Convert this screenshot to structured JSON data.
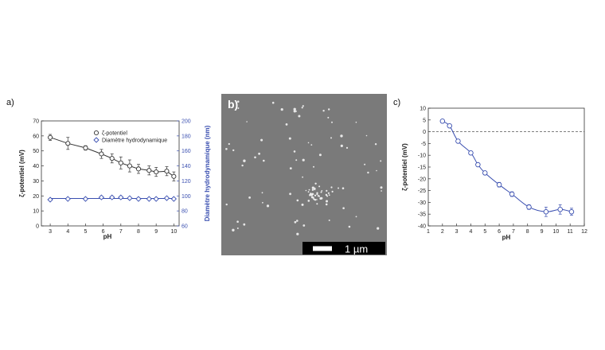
{
  "panels": {
    "a": "a)",
    "b": "b)",
    "c": "c)"
  },
  "sem": {
    "scale_label": "1 µm"
  },
  "colors": {
    "black_series": "#333333",
    "blue_series": "#3a4fb0",
    "sem_bg": "#7a7a7a",
    "dashed_line": "#555555"
  },
  "chart_data": [
    {
      "id": "a",
      "type": "scatter",
      "xlabel": "pH",
      "ylabel_left": "ζ-potentiel (mV)",
      "ylabel_right": "Diamètre hydrodynamique (nm)",
      "xlim": [
        2.5,
        10.3
      ],
      "ylim_left": [
        0,
        70
      ],
      "ylim_right": [
        60,
        200
      ],
      "xticks": [
        3,
        4,
        5,
        6,
        7,
        8,
        9,
        10
      ],
      "yticks_left": [
        0,
        10,
        20,
        30,
        40,
        50,
        60,
        70
      ],
      "yticks_right": [
        60,
        80,
        100,
        120,
        140,
        160,
        180,
        200
      ],
      "legend_position": "top-right",
      "series": [
        {
          "name": "ζ-potentiel",
          "axis": "left",
          "marker": "circle",
          "color": "#333333",
          "x": [
            3.0,
            4.0,
            5.0,
            5.9,
            6.5,
            7.0,
            7.5,
            8.0,
            8.6,
            9.0,
            9.6,
            10.0
          ],
          "y": [
            59,
            55,
            52,
            48,
            45,
            42,
            40,
            38,
            37,
            36,
            36.5,
            33
          ],
          "err": [
            2,
            4,
            1.5,
            3,
            3,
            4,
            4,
            3,
            3,
            3,
            3,
            3
          ]
        },
        {
          "name": "Diamètre hydrodynamique",
          "axis": "right",
          "marker": "diamond",
          "color": "#3a4fb0",
          "x": [
            3.0,
            4.0,
            5.0,
            5.9,
            6.5,
            7.0,
            7.5,
            8.0,
            8.6,
            9.0,
            9.6,
            10.0
          ],
          "y": [
            95,
            96,
            96,
            98,
            98,
            98,
            97,
            96,
            96,
            96,
            97,
            96
          ]
        }
      ]
    },
    {
      "id": "c",
      "type": "scatter",
      "xlabel": "pH",
      "ylabel": "ζ-potentiel (mV)",
      "xlim": [
        1,
        12
      ],
      "ylim": [
        -40,
        10
      ],
      "xticks": [
        1,
        2,
        3,
        4,
        5,
        6,
        7,
        8,
        9,
        10,
        11,
        12
      ],
      "yticks": [
        10,
        5,
        0,
        -5,
        -10,
        -15,
        -20,
        -25,
        -30,
        -35,
        -40
      ],
      "reference_line": 0,
      "series": [
        {
          "marker": "circle",
          "color": "#3a4fb0",
          "x": [
            2.0,
            2.5,
            3.1,
            4.0,
            4.5,
            5.0,
            6.0,
            6.9,
            8.1,
            9.3,
            10.3,
            11.1
          ],
          "y": [
            4.5,
            2.5,
            -4,
            -9,
            -14,
            -17.5,
            -22.5,
            -26.5,
            -32,
            -34,
            -33,
            -34
          ],
          "err": [
            0.5,
            0.5,
            0.5,
            0.8,
            0.5,
            0.5,
            1,
            1,
            1,
            2,
            2,
            1.5
          ]
        }
      ]
    }
  ]
}
